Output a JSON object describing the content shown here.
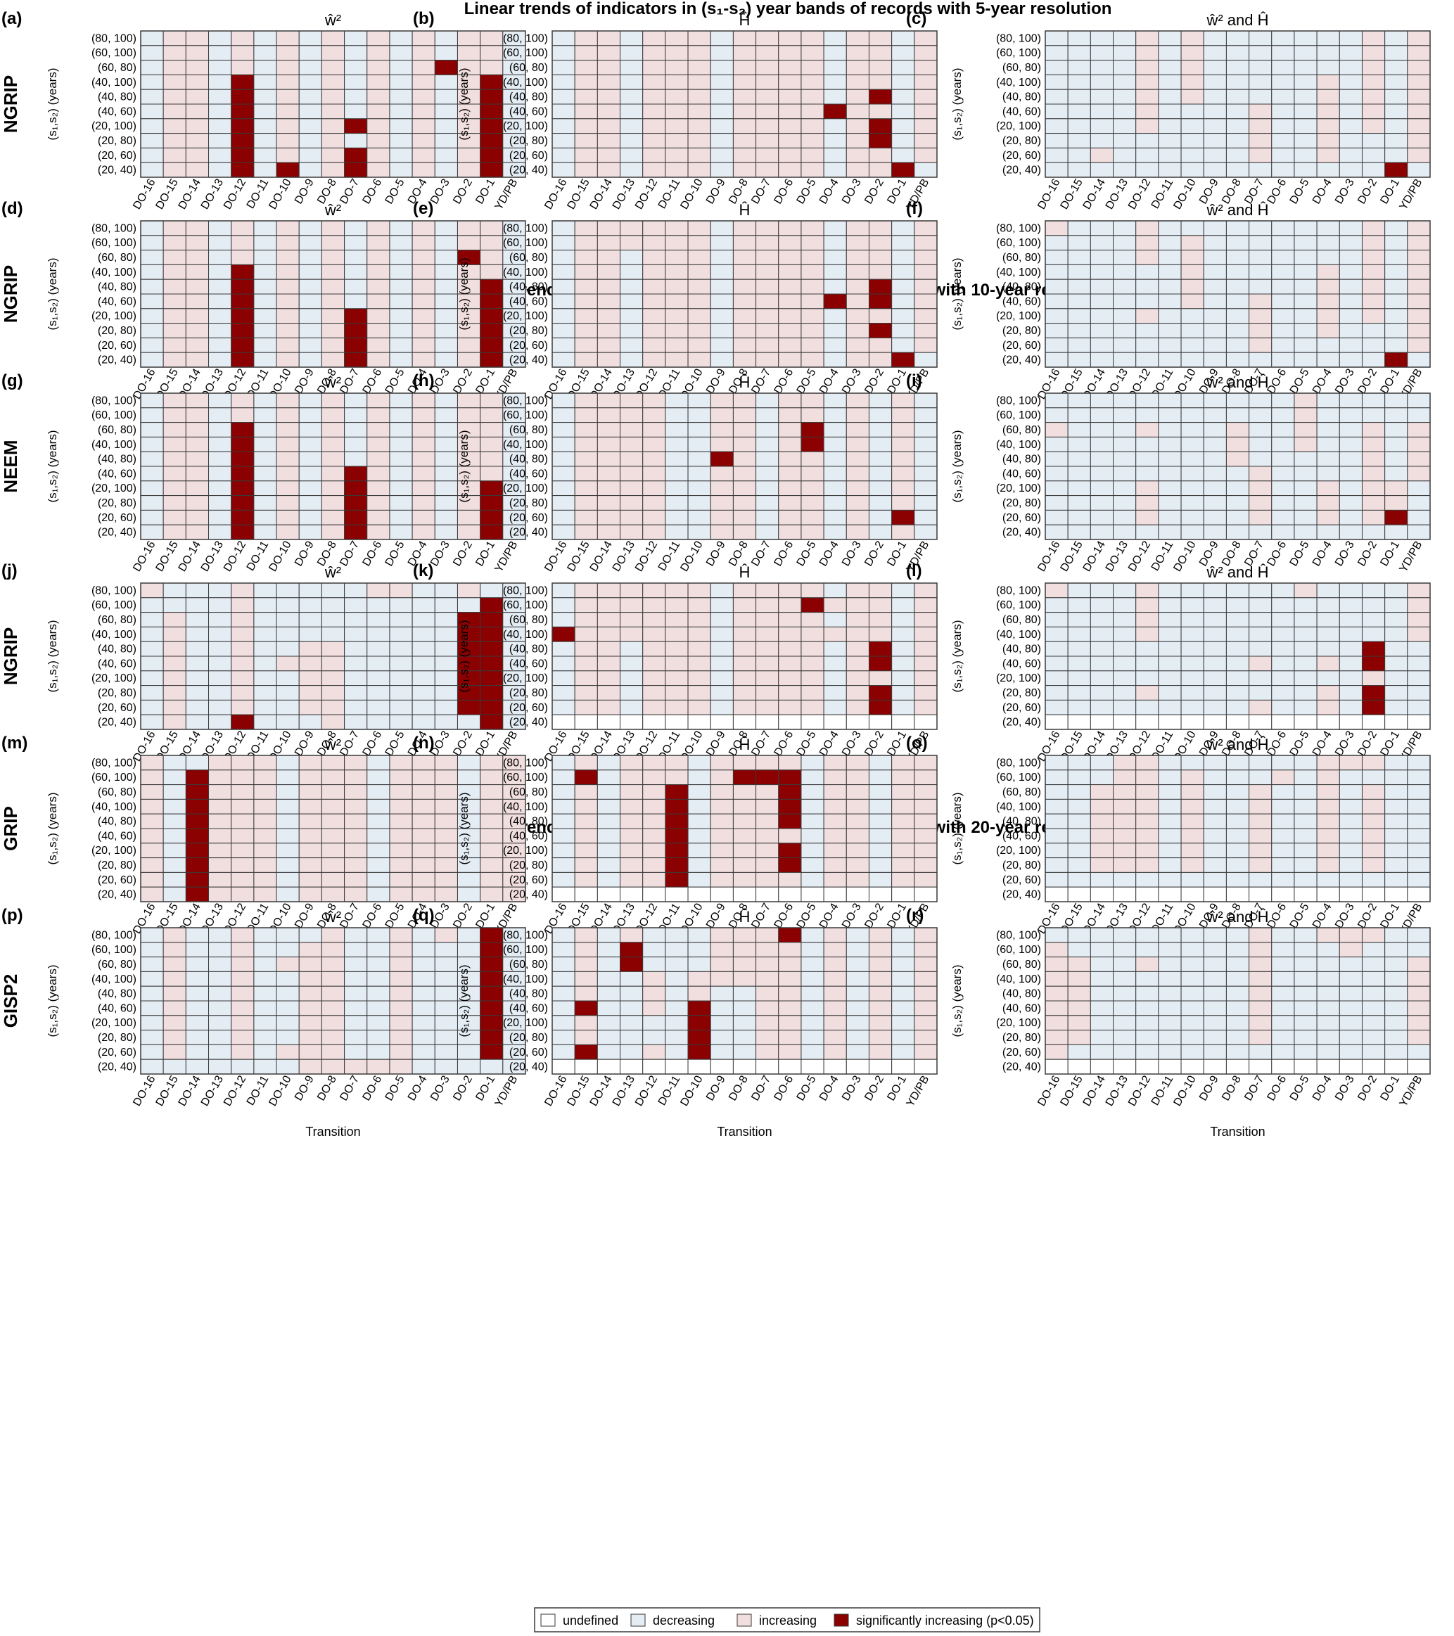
{
  "titles": {
    "res5": "Linear trends of indicators in (s₁-s₂) year bands of records with 5-year resolution",
    "res10": "Linear trends of indicators in (s₁-s₂) year bands of records with 10-year resolution",
    "res20": "Linear trends of indicators in (s₁-s₂) year bands of records with 20-year resolution"
  },
  "axis": {
    "xlabel": "Transition",
    "ylabel": "(s₁,s₂) (years)",
    "yticks": [
      "(80, 100)",
      "(60, 100)",
      "(60, 80)",
      "(40, 100)",
      "(40, 80)",
      "(40, 60)",
      "(20, 100)",
      "(20, 80)",
      "(20, 60)",
      "(20, 40)"
    ],
    "xticks": [
      "DO-16",
      "DO-15",
      "DO-14",
      "DO-13",
      "DO-12",
      "DO-11",
      "DO-10",
      "DO-9",
      "DO-8",
      "DO-7",
      "DO-6",
      "DO-5",
      "DO-4",
      "DO-3",
      "DO-2",
      "DO-1",
      "YD/PB"
    ]
  },
  "colors": {
    "undefined": "#ffffff",
    "decreasing": "#e4ecf4",
    "increasing": "#f1dede",
    "significant": "#8b0000",
    "grid": "#3a3a3a"
  },
  "indicator_titles": {
    "w": "ŵ²",
    "h": "Ĥ",
    "wh": "ŵ² and Ĥ"
  },
  "rows": [
    {
      "label": "NGRIP",
      "letters": [
        "(a)",
        "(b)",
        "(c)"
      ]
    },
    {
      "label": "NGRIP",
      "letters": [
        "(d)",
        "(e)",
        "(f)"
      ]
    },
    {
      "label": "NEEM",
      "letters": [
        "(g)",
        "(h)",
        "(i)"
      ]
    },
    {
      "label": "NGRIP",
      "letters": [
        "(j)",
        "(k)",
        "(l)"
      ]
    },
    {
      "label": "GRIP",
      "letters": [
        "(m)",
        "(n)",
        "(o)"
      ]
    },
    {
      "label": "GISP2",
      "letters": [
        "(p)",
        "(q)",
        "(r)"
      ]
    }
  ],
  "legend": [
    {
      "key": "undefined",
      "label": "undefined"
    },
    {
      "key": "decreasing",
      "label": "decreasing"
    },
    {
      "key": "increasing",
      "label": "increasing"
    },
    {
      "key": "significant",
      "label": "significantly increasing (p<0.05)"
    }
  ],
  "chart_data": {
    "type": "heatmap",
    "encoding": {
      "U": "undefined",
      "D": "decreasing",
      "I": "increasing",
      "S": "significantly increasing (p<0.05)"
    },
    "row_order": "rows listed top to bottom as in yticks; each string lists the 17 transitions left to right",
    "panels": [
      {
        "id": "a",
        "record": "NGRIP",
        "resolution": "5-year",
        "indicator": "ŵ²",
        "cells": [
          "DIIDIDIDIDIDIDIID",
          "DIIDIDIDIDIDIDIID",
          "DIIDIDIDIDIDISIID",
          "DIIDSDIDIDIDIDISD",
          "DIIDSDIDIDIDIDISD",
          "DIIDSDIDIDIDIDISD",
          "DIIDSDIDISIDIDISD",
          "DIIDSDIDIDIDIDISD",
          "DIIDSDIDISIDIDISD",
          "DIIDSDSDISIDIDISD"
        ]
      },
      {
        "id": "b",
        "record": "NGRIP",
        "resolution": "5-year",
        "indicator": "Ĥ",
        "cells": [
          "DIIDIIIDIIIIDIIDI",
          "DIIDIIIDIIIIDIIDI",
          "DIIDIIIDIIIIDIIDI",
          "DIIDIIIDIIIIDIIDI",
          "DIIDIIIDIIIIDISDI",
          "DIIDIIIDIIIISIIDI",
          "DIIDIIIDIIIIDISDI",
          "DIIDIIIDIIIIDISDI",
          "DIIDIIIDIIIIDIIDI",
          "DIIDIIIDIIIIDIISD"
        ]
      },
      {
        "id": "c",
        "record": "NGRIP",
        "resolution": "5-year",
        "indicator": "ŵ² and Ĥ",
        "cells": [
          "DDDDIDIDDDDDDDIDI",
          "DDDDIDIDDDDDDDIDI",
          "DDDDIDIDDDDDDDIDI",
          "DDDDIDIDDDDDIDIDI",
          "DDDDIDIDDDDDIDIDI",
          "DDDDIDDDDIDDIDIDI",
          "DDDDIDDDDIDDIDIDI",
          "DDDDDDDDDIDDIDDDI",
          "DDIDDDDDDIDDIDDDI",
          "DDDDDDDDDDDDDDDSD"
        ]
      },
      {
        "id": "d",
        "record": "NGRIP",
        "resolution": "10-year",
        "indicator": "ŵ²",
        "cells": [
          "DIIDIDIDIDIDIDIID",
          "DIIDIDIDIDIDIDIID",
          "DIIDIDIDIDIDIDSID",
          "DIIDSDIDIDIDIDIID",
          "DIIDSDIDIDIDIDISD",
          "DIIDSDIDIDIDIDISD",
          "DIIDSDIDISIDIDISD",
          "DIIDSDIDISIDIDISD",
          "DIIDSDIDISIDIDISD",
          "DIIDSDIDISIDIDISD"
        ]
      },
      {
        "id": "e",
        "record": "NGRIP",
        "resolution": "10-year",
        "indicator": "Ĥ",
        "cells": [
          "DIIIIIIDIIIIDIIDI",
          "DIIIIIIDIIIIDIIDI",
          "DIIDIIIDIIIIDIIDI",
          "DIIDIIIDIIIIDIIDI",
          "DIIDIIIDIIIIDISDI",
          "DIIDIIIDIIIISISDI",
          "DIIDIIIDIIIIDIIDI",
          "DIIDIIIDIIIIDISDI",
          "DIIDIIIDIIIIDIIDI",
          "DIIDIIIDIIIIDIISD"
        ]
      },
      {
        "id": "f",
        "record": "NGRIP",
        "resolution": "10-year",
        "indicator": "ŵ² and Ĥ",
        "cells": [
          "IDDDIDDDDDDDDDIDI",
          "DDDDIDIDDDDDDDIDI",
          "DDDDIDIDDDDDDDIDI",
          "DDDDDDIDDDDDIDIDI",
          "DDDDDDIDDDDDIDIDI",
          "DDDDDDIDDIDDIDIDI",
          "DDDDIDDDDIDDIDIDI",
          "DDDDDDDDDIDDIDDDI",
          "DDDDDDDDDIDDDDDDI",
          "DDDDDDDDDDDDDDDSD"
        ]
      },
      {
        "id": "g",
        "record": "NEEM",
        "resolution": "10-year",
        "indicator": "ŵ²",
        "cells": [
          "DIIDIDIDIDIDIDIID",
          "DIIDIDIDIDIDIDIID",
          "DIIDSDIDIDIDIDIID",
          "DIIDSDIDIDIDIDIID",
          "DIIDSDIDIDIDIDIID",
          "DIIDSDIDISIDIDIID",
          "DIIDSDIDISIDIDISD",
          "DIIDSDIDISIDIDISD",
          "DIIDSDIDISIDIDISD",
          "DIIDSDIDISIDIDISD"
        ]
      },
      {
        "id": "h",
        "record": "NEEM",
        "resolution": "10-year",
        "indicator": "Ĥ",
        "cells": [
          "DIIIIDDIIDIIDIDID",
          "DIIIIDDIIDIIDIDID",
          "DIIIIDDIIDISDIDID",
          "DIIIIDDIIDISDIDID",
          "DIIIIDDSIDIIDIDID",
          "DIIIIDDIIDIIDIDID",
          "DIIIIDDIIDIIDIDID",
          "DIIIIDDIIDIIDIDID",
          "DIIIIDDIIDIIDIDSD",
          "DIIIIDDIIDIIDIDID"
        ]
      },
      {
        "id": "i",
        "record": "NEEM",
        "resolution": "10-year",
        "indicator": "ŵ² and Ĥ",
        "cells": [
          "DDDDDDDDDDDIDDDDD",
          "DDDDDDDDDDDIDDDDD",
          "IDDDIDDDIDDIDDIDI",
          "DDDDDDDDIDDIDDIDI",
          "DDDDDDDDIDDDDDIDI",
          "DDDDDDDDDIDDDDIDI",
          "DDDDIDDDDIDDIDIID",
          "DDDDIDDDDIDDIDIID",
          "DDDDIDDDDIDDIDISD",
          "DDDDDDDDDDDDDDDDD"
        ]
      },
      {
        "id": "j",
        "record": "NGRIP",
        "resolution": "20-year",
        "indicator": "ŵ²",
        "cells": [
          "IDDDIDDDDDIIDDIDD",
          "DDDDIDDDDDDDDDDSD",
          "DIDDIDDDDDDDDDSSD",
          "DIDDIDDDDDDDDDSSD",
          "DIDDIDDIIDDDDDSSD",
          "DIDDIDIIIDDDDDSSD",
          "DIDDIDDIIDDDDDSSD",
          "DIDDIDDIIDDDDDSSD",
          "DIDDIDDIIDDDDDSSD",
          "DIDDSDDDIDDDDDDSD"
        ]
      },
      {
        "id": "k",
        "record": "NGRIP",
        "resolution": "20-year",
        "indicator": "Ĥ",
        "cells": [
          "DIIIIIIDIIIIDIIDI",
          "DIIIIIIDIIISIIIDI",
          "DIIIIIIDIIIIDIIDI",
          "SIIIIIIDIIIIIIIDI",
          "DIIDIIIDIIIIDISDI",
          "DIIDIIIDIIIIDISDI",
          "DIIDIIIDIIIIDIIDI",
          "DIIDIIIDIIIIDISDI",
          "DIIDIIIDIIIIDISDI",
          "UUUUUUUUUUUUUUUUU"
        ]
      },
      {
        "id": "l",
        "record": "NGRIP",
        "resolution": "20-year",
        "indicator": "ŵ² and Ĥ",
        "cells": [
          "IDDDIDDDDDDIDDDDI",
          "DDDDIDDDDDDDDDDDI",
          "DDDDIDDDDDDDDDDDI",
          "DDDDIDDDDDDDDDDDI",
          "DDDDDDDDDDDDDDSDD",
          "DDDDDDDDDIDDIDSDD",
          "DDDDDDDDDDDDDDIDD",
          "DDDDIDDDDDDDIDSDD",
          "DDDDDDDDDIDDIDSDD",
          "UUUUUUUUUUUUUUUUU"
        ]
      },
      {
        "id": "m",
        "record": "GRIP",
        "resolution": "20-year",
        "indicator": "ŵ²",
        "cells": [
          "IDDIIIDIIIDIIIDII",
          "IDSIIIDIIIDIIIDII",
          "IDSIIIDIIIDIIIDII",
          "IDSIIIDIIIDIIIDII",
          "IDSIIIDIIIDIIIDII",
          "IDSIIIDIIIDIIIDII",
          "IDSIIIDIIIDIIIDII",
          "IDSIIIDIIIDIIIDII",
          "IDSIIIDIIIDIIIDII",
          "IDSIIIDIIIDIIIDII"
        ]
      },
      {
        "id": "n",
        "record": "GRIP",
        "resolution": "20-year",
        "indicator": "Ĥ",
        "cells": [
          "DIDIIIDIIIIDIIDII",
          "DSDIIIDISSSDIIDII",
          "DIDIISDIIISDIIDII",
          "DIDIISDIIISDIIDII",
          "DIDIISDIIISDIIDII",
          "DIDIISDIIIIDIIDII",
          "DIDIISDIIISDIIDII",
          "DIDIISDIIISDIIDII",
          "DIDIISDIIIIDIIDII",
          "UUUUUUUUUUUUUUUUU"
        ]
      },
      {
        "id": "o",
        "record": "GRIP",
        "resolution": "20-year",
        "indicator": "ŵ² and Ĥ",
        "cells": [
          "DDDIIDDDDDDDIIIDD",
          "DDDIIDIDDDIDIDDDD",
          "DDIIIDIDDIDDIDIDD",
          "DDIIIDIDDIDDIDIDD",
          "DDIIIDIDDIDDIDIDD",
          "DDIIIDIDDIDDIDIDD",
          "DDIIIDIDDIDDIDIDD",
          "DDIIIDIDDIDDIDIDD",
          "DDDDDDDDDDDDDDDDD",
          "UUUUUUUUUUUUUUUUU"
        ]
      },
      {
        "id": "p",
        "record": "GISP2",
        "resolution": "20-year",
        "indicator": "ŵ²",
        "cells": [
          "DIDDIDDDIDDIDIDSD",
          "DIDDIDDIIDDIDDDSD",
          "DIDDIDIIIDDIDDDSD",
          "DIDDIDDIIDDIDDDSD",
          "DIDDIDDIIDDIDDDSD",
          "DIDDIDDIIDDIDDDSD",
          "DIDDIDDIIDDIDDDSD",
          "DIDDIDDIIDDIDDDSD",
          "DIDDIDIIIDDIDDDSD",
          "DDDDDDDIIIIIDDDDD"
        ]
      },
      {
        "id": "q",
        "record": "GISP2",
        "resolution": "20-year",
        "indicator": "Ĥ",
        "cells": [
          "DIDIDDDIIISDIDIDI",
          "DIDSDDDIIIIDIDIDI",
          "DIDSDDDIIIIDIDIDI",
          "DIDDIDIIIIIDIDIDI",
          "DIDDIDIDDIIDIDIDI",
          "DSDDIDSDDIIDIDIDI",
          "DIDDDDSDDIIDIDIDI",
          "DIDDDDSDDIIDIDIDI",
          "DSDDIDSDDIIDIDIDI",
          "UUUUUUUUUUUUUUUUU"
        ]
      },
      {
        "id": "r",
        "record": "GISP2",
        "resolution": "20-year",
        "indicator": "ŵ² and Ĥ",
        "cells": [
          "DDDDDDDDDIDDIIIDD",
          "IDDDDDDDDIDDDIDDD",
          "IIDDIDDDDIDDDDDDI",
          "IIDDDDDDDIDDDDDDI",
          "IIDDDDDDDIDDDDDDI",
          "IIDDDDDDDIDDDDDDI",
          "IIDDDDDDDIDDDDDDI",
          "IIDDDDDDDIDDDDDDI",
          "IDDDDDDDDDDDDDDDD",
          "UUUUUUUUUUUUUUUUU"
        ]
      }
    ]
  }
}
